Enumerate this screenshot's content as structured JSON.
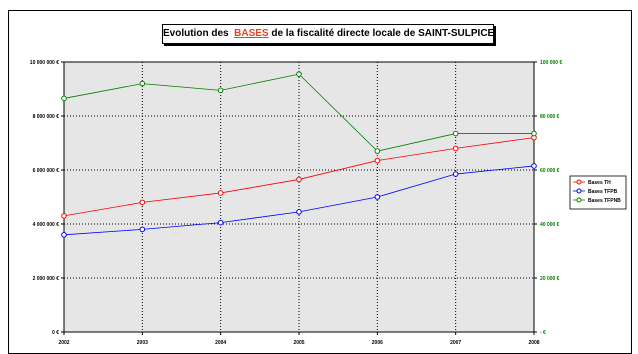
{
  "title": {
    "pre": "Evolution des",
    "highlight": "BASES",
    "post": "de la fiscalité directe locale de SAINT-SULPICE",
    "highlight_color": "#e8431b"
  },
  "chart_data": {
    "type": "line",
    "x": [
      "2002",
      "2003",
      "2004",
      "2005",
      "2006",
      "2007",
      "2008"
    ],
    "left_axis": {
      "ylim": [
        0,
        10000000
      ],
      "ticks": [
        "0 €",
        "2 000 000 €",
        "4 000 000 €",
        "6 000 000 €",
        "8 000 000 €",
        "10 000 000 €"
      ],
      "tick_values": [
        0,
        2000000,
        4000000,
        6000000,
        8000000,
        10000000
      ],
      "color": "#000000"
    },
    "right_axis": {
      "ylim": [
        0,
        100000
      ],
      "ticks": [
        "- €",
        "20 000 €",
        "40 000 €",
        "60 000 €",
        "80 000 €",
        "100 000 €"
      ],
      "tick_values": [
        0,
        20000,
        40000,
        60000,
        80000,
        100000
      ],
      "color": "#008000"
    },
    "series": [
      {
        "name": "Bases TH",
        "axis": "left",
        "color": "#ff0000",
        "values": [
          4300000,
          4800000,
          5150000,
          5650000,
          6350000,
          6800000,
          7200000
        ]
      },
      {
        "name": "Bases TFPB",
        "axis": "left",
        "color": "#0000ff",
        "values": [
          3600000,
          3800000,
          4050000,
          4450000,
          5000000,
          5850000,
          6150000
        ]
      },
      {
        "name": "Bases TFPNB",
        "axis": "right",
        "color": "#008000",
        "values": [
          86500,
          92000,
          89500,
          95500,
          67000,
          73500,
          73500
        ]
      }
    ],
    "grid": true,
    "legend_position": "right",
    "plot_background": "#e6e6e6"
  }
}
